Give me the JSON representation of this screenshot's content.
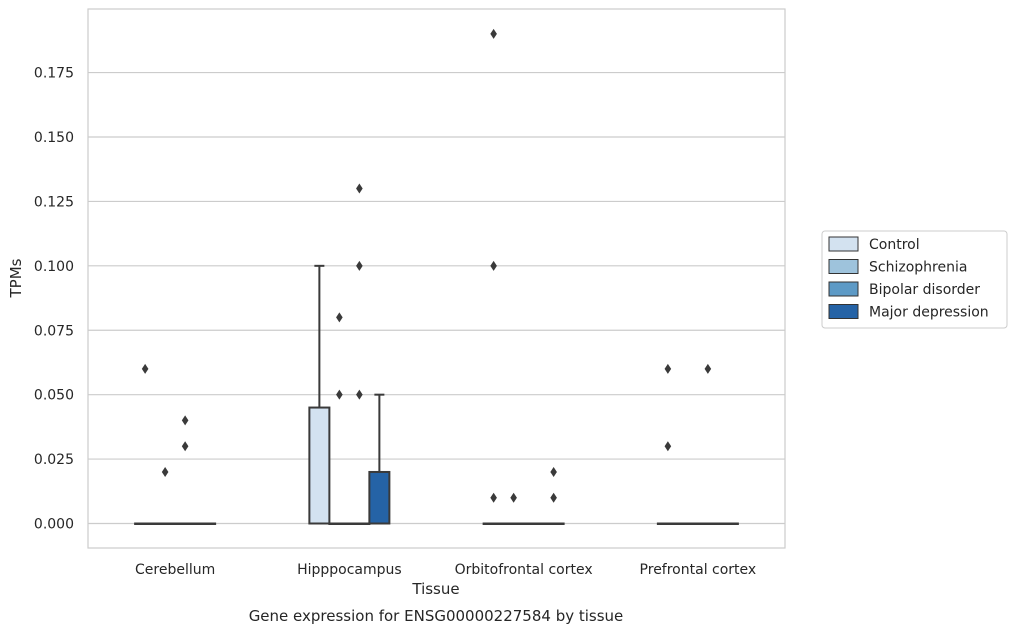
{
  "chart_data": {
    "type": "box",
    "title": "Gene expression for ENSG00000227584 by tissue",
    "xlabel": "Tissue",
    "ylabel": "TPMs",
    "ylim": [
      -0.0095,
      0.1985
    ],
    "yticks": [
      "0.000",
      "0.025",
      "0.050",
      "0.075",
      "0.100",
      "0.125",
      "0.150",
      "0.175"
    ],
    "ytick_values": [
      0,
      0.025,
      0.05,
      0.075,
      0.1,
      0.125,
      0.15,
      0.175
    ],
    "grid": true,
    "legend_position": "right",
    "categories": [
      "Cerebellum",
      "Hipppocampus",
      "Orbitofrontal cortex",
      "Prefrontal cortex"
    ],
    "series": [
      {
        "name": "Control",
        "color": "#d3e2f0",
        "boxes": [
          {
            "q1": 0,
            "median": 0,
            "q3": 0,
            "whisker_low": 0,
            "whisker_high": 0,
            "outliers": [
              0.06
            ]
          },
          {
            "q1": 0,
            "median": 0,
            "q3": 0.045,
            "whisker_low": 0,
            "whisker_high": 0.1,
            "outliers": []
          },
          {
            "q1": 0,
            "median": 0,
            "q3": 0,
            "whisker_low": 0,
            "whisker_high": 0,
            "outliers": [
              0.19,
              0.1,
              0.01
            ]
          },
          {
            "q1": 0,
            "median": 0,
            "q3": 0,
            "whisker_low": 0,
            "whisker_high": 0,
            "outliers": [
              0.06,
              0.03
            ]
          }
        ]
      },
      {
        "name": "Schizophrenia",
        "color": "#9ec3dc",
        "boxes": [
          {
            "q1": 0,
            "median": 0,
            "q3": 0,
            "whisker_low": 0,
            "whisker_high": 0,
            "outliers": [
              0.02
            ]
          },
          {
            "q1": 0,
            "median": 0,
            "q3": 0,
            "whisker_low": 0,
            "whisker_high": 0,
            "outliers": [
              0.08,
              0.05
            ]
          },
          {
            "q1": 0,
            "median": 0,
            "q3": 0,
            "whisker_low": 0,
            "whisker_high": 0,
            "outliers": [
              0.01
            ]
          },
          {
            "q1": 0,
            "median": 0,
            "q3": 0,
            "whisker_low": 0,
            "whisker_high": 0,
            "outliers": []
          }
        ]
      },
      {
        "name": "Bipolar disorder",
        "color": "#5d9ac6",
        "boxes": [
          {
            "q1": 0,
            "median": 0,
            "q3": 0,
            "whisker_low": 0,
            "whisker_high": 0,
            "outliers": [
              0.04,
              0.03
            ]
          },
          {
            "q1": 0,
            "median": 0,
            "q3": 0,
            "whisker_low": 0,
            "whisker_high": 0,
            "outliers": [
              0.13,
              0.1,
              0.05
            ]
          },
          {
            "q1": 0,
            "median": 0,
            "q3": 0,
            "whisker_low": 0,
            "whisker_high": 0,
            "outliers": []
          },
          {
            "q1": 0,
            "median": 0,
            "q3": 0,
            "whisker_low": 0,
            "whisker_high": 0,
            "outliers": [
              0.06
            ]
          }
        ]
      },
      {
        "name": "Major depression",
        "color": "#2563a6",
        "boxes": [
          {
            "q1": 0,
            "median": 0,
            "q3": 0,
            "whisker_low": 0,
            "whisker_high": 0,
            "outliers": []
          },
          {
            "q1": 0,
            "median": 0,
            "q3": 0.02,
            "whisker_low": 0,
            "whisker_high": 0.05,
            "outliers": []
          },
          {
            "q1": 0,
            "median": 0,
            "q3": 0,
            "whisker_low": 0,
            "whisker_high": 0,
            "outliers": [
              0.02,
              0.01
            ]
          },
          {
            "q1": 0,
            "median": 0,
            "q3": 0,
            "whisker_low": 0,
            "whisker_high": 0,
            "outliers": []
          }
        ]
      }
    ]
  }
}
